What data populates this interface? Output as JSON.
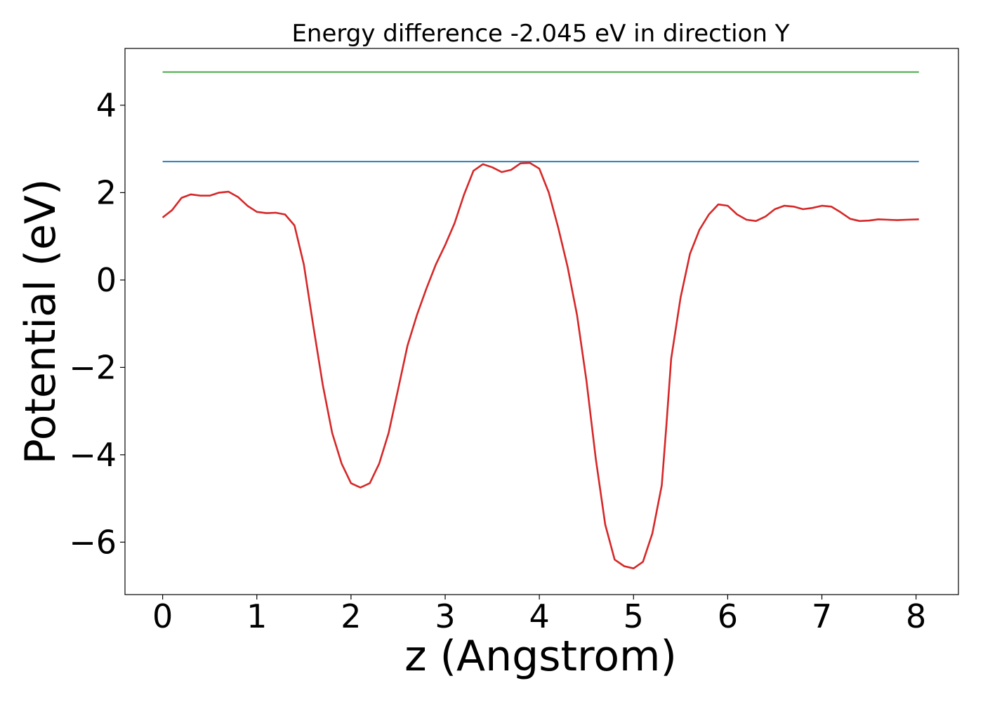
{
  "chart_data": {
    "type": "line",
    "title": "Energy difference -2.045 eV in direction Y",
    "xlabel": "z (Angstrom)",
    "ylabel": "Potential (eV)",
    "xlim": [
      -0.4,
      8.45
    ],
    "ylim": [
      -7.2,
      5.3
    ],
    "xticks": [
      0,
      1,
      2,
      3,
      4,
      5,
      6,
      7,
      8
    ],
    "xtick_labels": [
      "0",
      "1",
      "2",
      "3",
      "4",
      "5",
      "6",
      "7",
      "8"
    ],
    "yticks": [
      4,
      2,
      0,
      -2,
      -4,
      -6
    ],
    "ytick_labels": [
      "4",
      "2",
      "0",
      "−2",
      "−4",
      "−6"
    ],
    "grid": false,
    "series": [
      {
        "color": "#2ca02c",
        "x": [
          0,
          8.03
        ],
        "y": [
          4.76,
          4.76
        ]
      },
      {
        "color": "#1f77b4",
        "x": [
          0,
          8.03
        ],
        "y": [
          2.71,
          2.71
        ]
      },
      {
        "color": "#d62728",
        "x": [
          0,
          0.1,
          0.2,
          0.3,
          0.4,
          0.5,
          0.6,
          0.7,
          0.8,
          0.9,
          1.0,
          1.1,
          1.2,
          1.3,
          1.4,
          1.5,
          1.6,
          1.7,
          1.8,
          1.9,
          2.0,
          2.1,
          2.2,
          2.3,
          2.4,
          2.5,
          2.6,
          2.7,
          2.8,
          2.9,
          3.0,
          3.1,
          3.2,
          3.3,
          3.4,
          3.5,
          3.6,
          3.7,
          3.8,
          3.9,
          4.0,
          4.1,
          4.2,
          4.3,
          4.4,
          4.5,
          4.6,
          4.7,
          4.8,
          4.9,
          5.0,
          5.1,
          5.2,
          5.3,
          5.35,
          5.4,
          5.5,
          5.6,
          5.7,
          5.8,
          5.9,
          6.0,
          6.1,
          6.2,
          6.3,
          6.4,
          6.5,
          6.6,
          6.7,
          6.8,
          6.9,
          7.0,
          7.1,
          7.2,
          7.3,
          7.4,
          7.5,
          7.6,
          7.7,
          7.8,
          7.9,
          8.03
        ],
        "y": [
          1.43,
          1.6,
          1.88,
          1.96,
          1.93,
          1.93,
          2.0,
          2.02,
          1.9,
          1.7,
          1.56,
          1.53,
          1.54,
          1.5,
          1.25,
          0.35,
          -1.05,
          -2.4,
          -3.5,
          -4.2,
          -4.65,
          -4.75,
          -4.65,
          -4.2,
          -3.5,
          -2.5,
          -1.5,
          -0.8,
          -0.2,
          0.35,
          0.8,
          1.3,
          1.95,
          2.5,
          2.65,
          2.58,
          2.47,
          2.52,
          2.67,
          2.68,
          2.55,
          2.0,
          1.2,
          0.3,
          -0.8,
          -2.3,
          -4.1,
          -5.6,
          -6.4,
          -6.55,
          -6.6,
          -6.45,
          -5.8,
          -4.7,
          -3.3,
          -1.8,
          -0.4,
          0.6,
          1.15,
          1.5,
          1.73,
          1.7,
          1.5,
          1.38,
          1.35,
          1.45,
          1.62,
          1.7,
          1.68,
          1.62,
          1.65,
          1.7,
          1.68,
          1.55,
          1.4,
          1.35,
          1.36,
          1.39,
          1.38,
          1.37,
          1.38,
          1.39
        ]
      }
    ]
  }
}
